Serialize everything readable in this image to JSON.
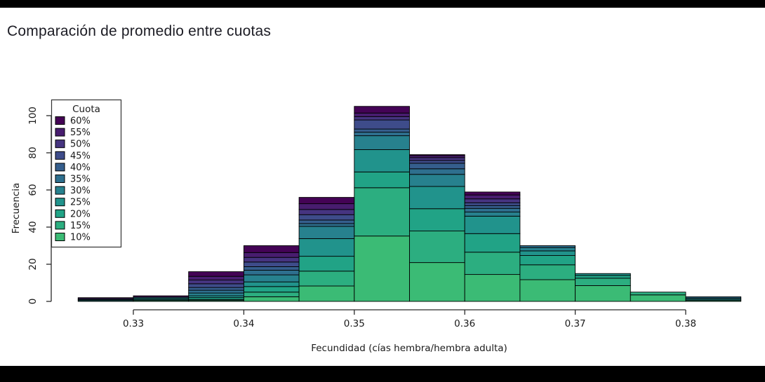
{
  "page": {
    "title": "Comparación de promedio entre cuotas",
    "background_color": "#000000",
    "canvas_color": "#ffffff"
  },
  "chart_data": {
    "type": "bar",
    "subtype": "stacked-histogram",
    "title": "Comparación de promedio entre cuotas",
    "xlabel": "Fecundidad (cías hembra/hembra adulta)",
    "ylabel": "Frecuencia",
    "legend_title": "Cuota",
    "legend_position": "top-left",
    "grid": false,
    "xlim": [
      0.325,
      0.385
    ],
    "ylim": [
      0,
      105
    ],
    "x_ticks": [
      "0.33",
      "0.34",
      "0.35",
      "0.36",
      "0.37",
      "0.38"
    ],
    "x_tick_values": [
      0.33,
      0.34,
      0.35,
      0.36,
      0.37,
      0.38
    ],
    "y_ticks": [
      "0",
      "20",
      "40",
      "60",
      "80",
      "100"
    ],
    "y_tick_values": [
      0,
      20,
      40,
      60,
      80,
      100
    ],
    "bin_width": 0.005,
    "bin_edges": [
      0.325,
      0.33,
      0.335,
      0.34,
      0.345,
      0.35,
      0.355,
      0.36,
      0.365,
      0.37,
      0.375,
      0.38,
      0.385
    ],
    "bin_totals": [
      2,
      3,
      16,
      30,
      56,
      105,
      79,
      59,
      30,
      15,
      5,
      2.5
    ],
    "stack_order": "first series at bottom",
    "series": [
      {
        "name": "10%",
        "color": "#3bbb75",
        "values": [
          0,
          0.5,
          0.5,
          2.5,
          8.3,
          35.2,
          20.9,
          14.5,
          11.7,
          8.5,
          3.5,
          0.5
        ]
      },
      {
        "name": "15%",
        "color": "#2cae80",
        "values": [
          0,
          0,
          0.5,
          2.5,
          8,
          26,
          17,
          12,
          8,
          4,
          1.5,
          0
        ]
      },
      {
        "name": "20%",
        "color": "#21a386",
        "values": [
          0,
          0.5,
          1,
          3,
          8,
          8.5,
          12,
          10,
          5,
          1.5,
          0,
          0
        ]
      },
      {
        "name": "25%",
        "color": "#21938c",
        "values": [
          0.5,
          0.7,
          1,
          2.5,
          9.5,
          12,
          12,
          9.4,
          2.5,
          1,
          0,
          0.6
        ]
      },
      {
        "name": "30%",
        "color": "#27818e",
        "values": [
          0.5,
          0.6,
          1.5,
          3.8,
          6.6,
          7.5,
          6.5,
          2.2,
          1.8,
          0,
          0,
          0.7
        ]
      },
      {
        "name": "35%",
        "color": "#2e6f8e",
        "values": [
          0,
          0,
          1.5,
          2.5,
          1.5,
          1.9,
          3,
          2,
          1,
          0,
          0,
          0.7
        ]
      },
      {
        "name": "40%",
        "color": "#355e8d",
        "values": [
          0,
          0,
          1.5,
          1.9,
          1.9,
          1.7,
          3,
          1.5,
          0,
          0,
          0,
          0
        ]
      },
      {
        "name": "45%",
        "color": "#3e4c8a",
        "values": [
          0.5,
          0,
          2,
          2.5,
          2.9,
          4.9,
          1.5,
          1.5,
          0,
          0,
          0,
          0
        ]
      },
      {
        "name": "50%",
        "color": "#463480",
        "values": [
          0,
          0,
          2,
          2.5,
          2.8,
          1.8,
          1.5,
          2.1,
          0,
          0,
          0,
          0
        ]
      },
      {
        "name": "55%",
        "color": "#481d6f",
        "values": [
          0,
          0,
          2,
          2.6,
          3.1,
          1.9,
          1.1,
          2.1,
          0,
          0,
          0,
          0
        ]
      },
      {
        "name": "60%",
        "color": "#440355",
        "values": [
          0.5,
          0.7,
          2.5,
          3.7,
          3.4,
          3.6,
          0.5,
          1.6,
          0,
          0,
          0,
          0
        ]
      }
    ],
    "legend_entries_top_to_bottom": [
      "60%",
      "55%",
      "50%",
      "45%",
      "40%",
      "35%",
      "30%",
      "25%",
      "20%",
      "15%",
      "10%"
    ],
    "bar_border_color": "#000000",
    "axis_color": "#2a2a2a"
  }
}
